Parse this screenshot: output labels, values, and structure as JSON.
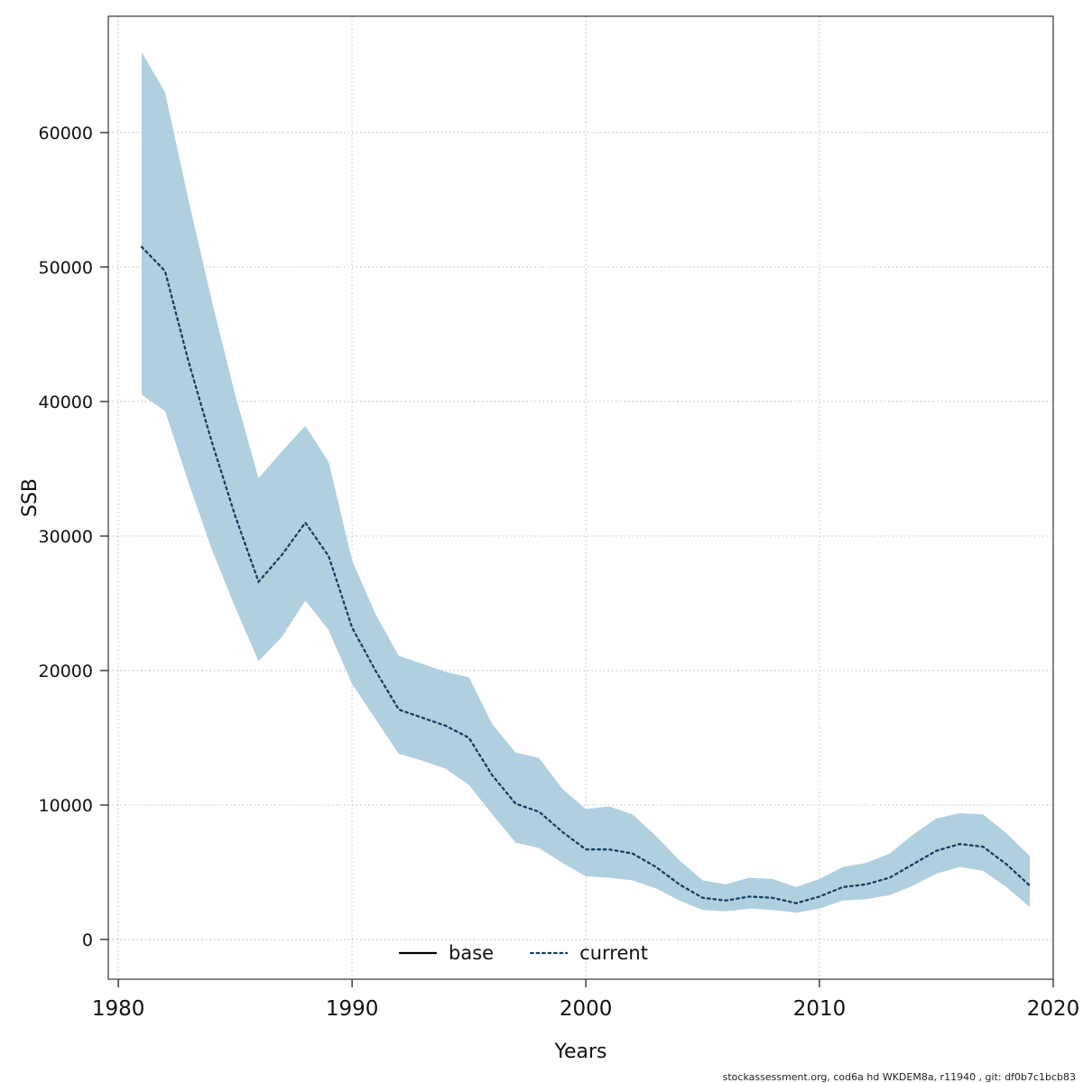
{
  "page": {
    "footer": "stockassessment.org, cod6a hd WKDEM8a, r11940 , git: df0b7c1bcb83"
  },
  "chart_data": {
    "type": "line",
    "title": "",
    "xlabel": "Years",
    "ylabel": "SSB",
    "xlim": [
      1979.57,
      2020.0
    ],
    "ylim": [
      -2950,
      68650
    ],
    "x_ticks": [
      1980,
      1990,
      2000,
      2010,
      2020
    ],
    "y_ticks": [
      0,
      10000,
      20000,
      30000,
      40000,
      50000,
      60000
    ],
    "grid": true,
    "colors": {
      "ribbon": "#a9cbdb",
      "line": "#14405f",
      "base_line": "#000000",
      "gridline": "#bdbdbd"
    },
    "legend": {
      "position": "bottom-center",
      "entries": [
        {
          "label": "base",
          "style": "solid",
          "color": "#000000"
        },
        {
          "label": "current",
          "style": "dotted",
          "color": "#14405f"
        }
      ]
    },
    "series": [
      {
        "name": "current",
        "x": [
          1981,
          1982,
          1983,
          1984,
          1985,
          1986,
          1987,
          1988,
          1989,
          1990,
          1991,
          1992,
          1993,
          1994,
          1995,
          1996,
          1997,
          1998,
          1999,
          2000,
          2001,
          2002,
          2003,
          2004,
          2005,
          2006,
          2007,
          2008,
          2009,
          2010,
          2011,
          2012,
          2013,
          2014,
          2015,
          2016,
          2017,
          2018,
          2019
        ],
        "y": [
          51500,
          49700,
          43000,
          37000,
          31500,
          26600,
          28600,
          31000,
          28500,
          23200,
          20000,
          17100,
          16500,
          15900,
          15000,
          12200,
          10100,
          9500,
          8000,
          6700,
          6700,
          6400,
          5400,
          4100,
          3100,
          2900,
          3200,
          3100,
          2700,
          3200,
          3900,
          4100,
          4600,
          5600,
          6600,
          7100,
          6900,
          5600,
          4000
        ],
        "upper": [
          66000,
          63000,
          55000,
          47500,
          40500,
          34300,
          36300,
          38200,
          35500,
          28200,
          24200,
          21100,
          20500,
          19900,
          19500,
          16000,
          13900,
          13500,
          11200,
          9700,
          9900,
          9300,
          7700,
          5900,
          4400,
          4100,
          4600,
          4500,
          3900,
          4500,
          5400,
          5700,
          6400,
          7800,
          9000,
          9400,
          9300,
          7900,
          6200
        ],
        "lower": [
          40500,
          39300,
          34000,
          29000,
          24700,
          20700,
          22500,
          25200,
          23000,
          19000,
          16400,
          13800,
          13300,
          12700,
          11500,
          9300,
          7200,
          6800,
          5700,
          4700,
          4600,
          4400,
          3800,
          2900,
          2200,
          2100,
          2300,
          2200,
          2000,
          2300,
          2900,
          3000,
          3300,
          4000,
          4900,
          5400,
          5100,
          3900,
          2400
        ]
      }
    ]
  }
}
